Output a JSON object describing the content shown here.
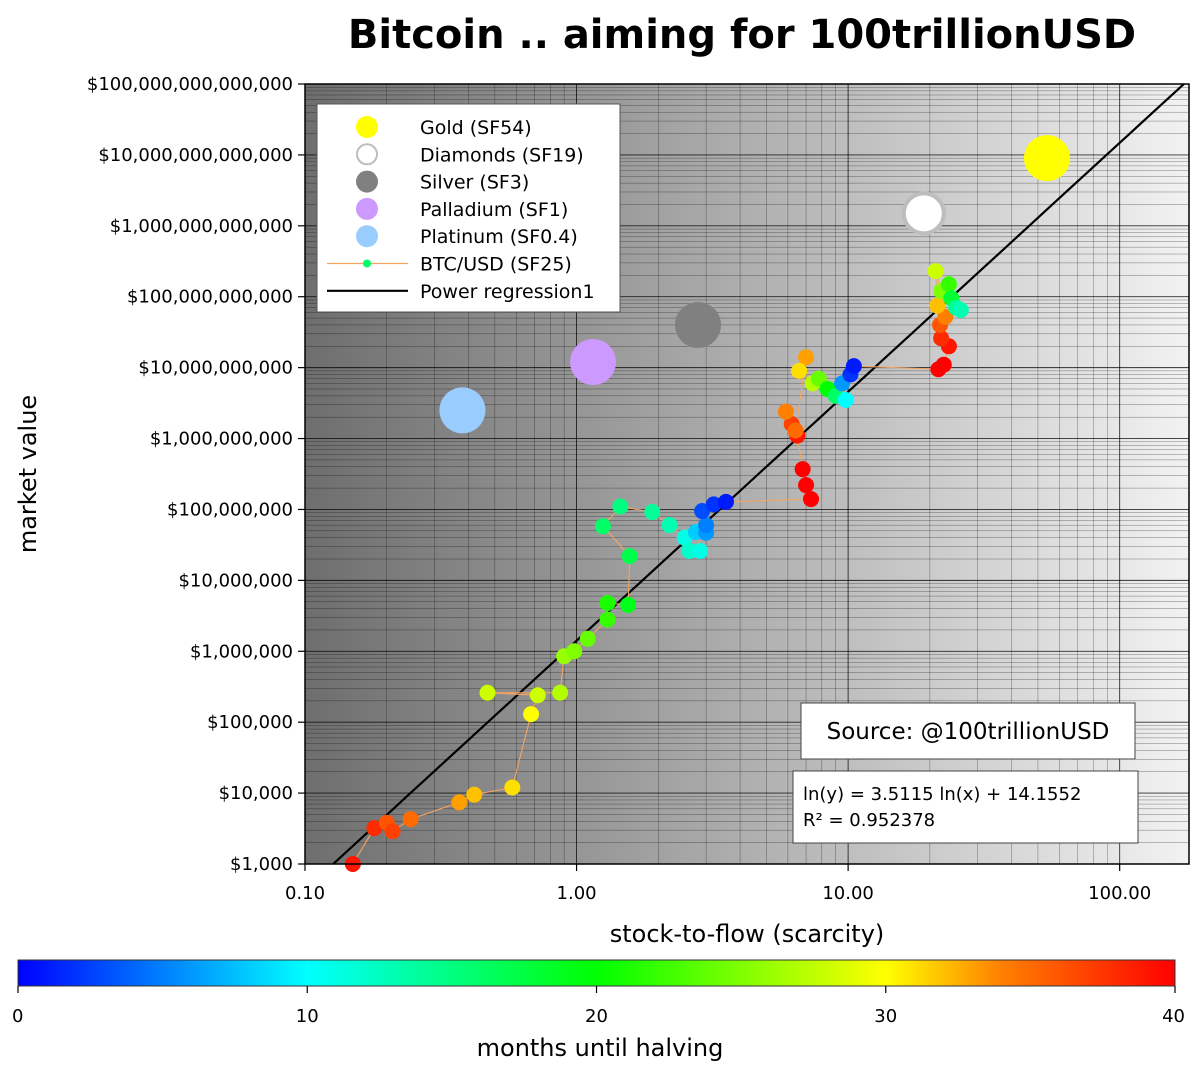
{
  "chart_data": {
    "type": "scatter",
    "title": "Bitcoin .. aiming for 100trillionUSD",
    "xlabel": "stock-to-flow (scarcity)",
    "ylabel": "market value",
    "x_scale": "log",
    "y_scale": "log",
    "xlim": [
      0.1,
      180
    ],
    "ylim": [
      1000,
      100000000000000
    ],
    "grid": true,
    "x_ticks": [
      {
        "value": 0.1,
        "label": "0.10"
      },
      {
        "value": 1,
        "label": "1.00"
      },
      {
        "value": 10,
        "label": "10.00"
      },
      {
        "value": 100,
        "label": "100.00"
      }
    ],
    "y_ticks": [
      {
        "value": 1000,
        "label": "$1,000"
      },
      {
        "value": 10000,
        "label": "$10,000"
      },
      {
        "value": 100000,
        "label": "$100,000"
      },
      {
        "value": 1000000,
        "label": "$1,000,000"
      },
      {
        "value": 10000000,
        "label": "$10,000,000"
      },
      {
        "value": 100000000,
        "label": "$100,000,000"
      },
      {
        "value": 1000000000,
        "label": "$1,000,000,000"
      },
      {
        "value": 10000000000,
        "label": "$10,000,000,000"
      },
      {
        "value": 100000000000,
        "label": "$100,000,000,000"
      },
      {
        "value": 1000000000000,
        "label": "$1,000,000,000,000"
      },
      {
        "value": 10000000000000,
        "label": "$10,000,000,000,000"
      },
      {
        "value": 100000000000000,
        "label": "$100,000,000,000,000"
      }
    ],
    "legend_position": "top-left",
    "legend": [
      {
        "label": "Gold (SF54)",
        "marker": "circle",
        "color": "#ffff00"
      },
      {
        "label": "Diamonds (SF19)",
        "marker": "open-circle",
        "color": "#ffffff"
      },
      {
        "label": "Silver (SF3)",
        "marker": "circle",
        "color": "#808080"
      },
      {
        "label": "Palladium (SF1)",
        "marker": "circle",
        "color": "#cc99ff"
      },
      {
        "label": "Platinum (SF0.4)",
        "marker": "circle",
        "color": "#99ccff"
      },
      {
        "label": "BTC/USD (SF25)",
        "marker": "line-dot",
        "color": "#f4a460"
      },
      {
        "label": "Power regression1",
        "marker": "line",
        "color": "#000000"
      }
    ],
    "commodities": [
      {
        "name": "Gold",
        "x": 54,
        "y": 9000000000000,
        "color": "#ffff00"
      },
      {
        "name": "Diamonds",
        "x": 19,
        "y": 1500000000000,
        "color": "#ffffff"
      },
      {
        "name": "Silver",
        "x": 2.8,
        "y": 40000000000,
        "color": "#808080"
      },
      {
        "name": "Palladium",
        "x": 1.15,
        "y": 12000000000,
        "color": "#cc99ff"
      },
      {
        "name": "Platinum",
        "x": 0.38,
        "y": 2500000000,
        "color": "#99ccff"
      }
    ],
    "btc_series": {
      "name": "BTC/USD",
      "line_color": "#f4a460",
      "color_by": "months until halving",
      "points": [
        {
          "x": 0.15,
          "y": 1000,
          "m": 39
        },
        {
          "x": 0.18,
          "y": 3200,
          "m": 38
        },
        {
          "x": 0.2,
          "y": 3800,
          "m": 36
        },
        {
          "x": 0.21,
          "y": 2900,
          "m": 37
        },
        {
          "x": 0.245,
          "y": 4300,
          "m": 35
        },
        {
          "x": 0.37,
          "y": 7400,
          "m": 33
        },
        {
          "x": 0.42,
          "y": 9500,
          "m": 32
        },
        {
          "x": 0.58,
          "y": 12000,
          "m": 31
        },
        {
          "x": 0.68,
          "y": 130000,
          "m": 30
        },
        {
          "x": 0.72,
          "y": 240000,
          "m": 28
        },
        {
          "x": 0.47,
          "y": 260000,
          "m": 28
        },
        {
          "x": 0.87,
          "y": 260000,
          "m": 27
        },
        {
          "x": 0.9,
          "y": 850000,
          "m": 26
        },
        {
          "x": 0.98,
          "y": 1000000,
          "m": 25
        },
        {
          "x": 1.1,
          "y": 1500000,
          "m": 24
        },
        {
          "x": 1.3,
          "y": 2800000,
          "m": 22
        },
        {
          "x": 1.3,
          "y": 4800000,
          "m": 21
        },
        {
          "x": 1.55,
          "y": 4500000,
          "m": 19
        },
        {
          "x": 1.57,
          "y": 22000000,
          "m": 17
        },
        {
          "x": 1.25,
          "y": 58000000,
          "m": 16
        },
        {
          "x": 1.45,
          "y": 110000000,
          "m": 15
        },
        {
          "x": 1.9,
          "y": 92000000,
          "m": 14
        },
        {
          "x": 2.2,
          "y": 60000000,
          "m": 13
        },
        {
          "x": 2.5,
          "y": 40000000,
          "m": 11
        },
        {
          "x": 2.6,
          "y": 26000000,
          "m": 12
        },
        {
          "x": 2.85,
          "y": 26000000,
          "m": 11
        },
        {
          "x": 2.75,
          "y": 48000000,
          "m": 8
        },
        {
          "x": 3.0,
          "y": 47000000,
          "m": 6
        },
        {
          "x": 3.0,
          "y": 60000000,
          "m": 5
        },
        {
          "x": 2.9,
          "y": 95000000,
          "m": 3
        },
        {
          "x": 3.2,
          "y": 118000000,
          "m": 2
        },
        {
          "x": 3.55,
          "y": 128000000,
          "m": 1
        },
        {
          "x": 7.3,
          "y": 140000000,
          "m": 40
        },
        {
          "x": 7.0,
          "y": 220000000,
          "m": 40
        },
        {
          "x": 6.8,
          "y": 370000000,
          "m": 40
        },
        {
          "x": 6.5,
          "y": 1100000000,
          "m": 39
        },
        {
          "x": 6.2,
          "y": 1600000000,
          "m": 37
        },
        {
          "x": 5.9,
          "y": 2400000000,
          "m": 34
        },
        {
          "x": 6.4,
          "y": 1300000000,
          "m": 35
        },
        {
          "x": 7.0,
          "y": 14000000000,
          "m": 33
        },
        {
          "x": 6.6,
          "y": 9000000000,
          "m": 31
        },
        {
          "x": 7.4,
          "y": 6000000000,
          "m": 27
        },
        {
          "x": 7.8,
          "y": 7000000000,
          "m": 24
        },
        {
          "x": 8.4,
          "y": 5000000000,
          "m": 20
        },
        {
          "x": 9.0,
          "y": 4000000000,
          "m": 16
        },
        {
          "x": 9.8,
          "y": 3500000000,
          "m": 10
        },
        {
          "x": 9.5,
          "y": 6000000000,
          "m": 6
        },
        {
          "x": 10.2,
          "y": 8000000000,
          "m": 2
        },
        {
          "x": 10.5,
          "y": 10500000000,
          "m": 1
        },
        {
          "x": 21.5,
          "y": 9500000000,
          "m": 40
        },
        {
          "x": 22.5,
          "y": 11000000000,
          "m": 40
        },
        {
          "x": 23.5,
          "y": 20000000000,
          "m": 39
        },
        {
          "x": 22.0,
          "y": 26000000000,
          "m": 38
        },
        {
          "x": 21.8,
          "y": 40000000000,
          "m": 36
        },
        {
          "x": 22.8,
          "y": 52000000000,
          "m": 34
        },
        {
          "x": 21.3,
          "y": 75000000000,
          "m": 32
        },
        {
          "x": 21.0,
          "y": 230000000000,
          "m": 28
        },
        {
          "x": 22.0,
          "y": 120000000000,
          "m": 25
        },
        {
          "x": 23.5,
          "y": 150000000000,
          "m": 22
        },
        {
          "x": 24.0,
          "y": 95000000000,
          "m": 18
        },
        {
          "x": 25.0,
          "y": 70000000000,
          "m": 14
        },
        {
          "x": 26.0,
          "y": 65000000000,
          "m": 13
        }
      ]
    },
    "regression": {
      "label": "Power regression1",
      "slope": 3.5115,
      "intercept": 14.1552,
      "equation": "ln(y) = 3.5115 ln(x) + 14.1552",
      "r2": "R² = 0.952378"
    },
    "source_text": "Source: @100trillionUSD",
    "colorbar": {
      "label": "months until halving",
      "min": 0,
      "max": 40,
      "ticks": [
        {
          "value": 0,
          "label": "0"
        },
        {
          "value": 10,
          "label": "10"
        },
        {
          "value": 20,
          "label": "20"
        },
        {
          "value": 30,
          "label": "30"
        },
        {
          "value": 40,
          "label": "40"
        }
      ],
      "colors": [
        "#0000ff",
        "#00ffff",
        "#00ff00",
        "#ffff00",
        "#ff8000",
        "#ff0000"
      ]
    }
  }
}
